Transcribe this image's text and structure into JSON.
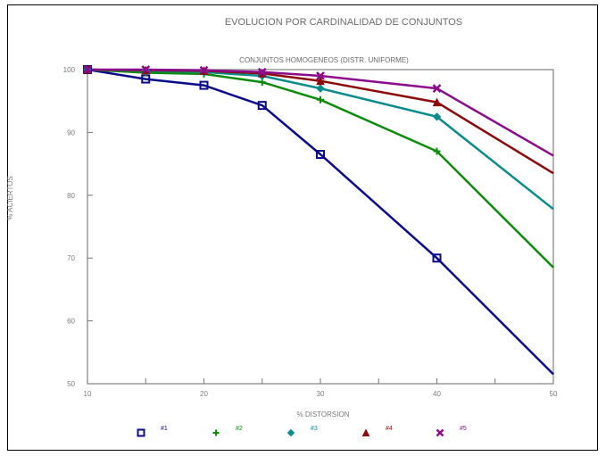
{
  "chart_data": {
    "type": "line",
    "title": "EVOLUCION POR CARDINALIDAD DE CONJUNTOS",
    "subtitle": "CONJUNTOS HOMOGENEOS (DISTR. UNIFORME)",
    "xlabel": "% DISTORSION",
    "ylabel": "% ACIERTOS",
    "xlim": [
      10,
      50
    ],
    "ylim": [
      50,
      100
    ],
    "x_ticks": [
      {
        "value": 10,
        "label": "10"
      },
      {
        "value": 20,
        "label": "20"
      },
      {
        "value": 30,
        "label": "30"
      },
      {
        "value": 40,
        "label": "40"
      },
      {
        "value": 50,
        "label": "50"
      }
    ],
    "y_ticks": [
      {
        "value": 50,
        "label": "50"
      },
      {
        "value": 60,
        "label": "60"
      },
      {
        "value": 70,
        "label": "70"
      },
      {
        "value": 80,
        "label": "80"
      },
      {
        "value": 90,
        "label": "90"
      },
      {
        "value": 100,
        "label": "100"
      }
    ],
    "x": [
      10,
      15,
      20,
      25,
      30,
      40,
      50
    ],
    "series": [
      {
        "name": "#1",
        "color": "#0a0a8c",
        "marker": "square",
        "values": [
          100,
          98.5,
          97.5,
          94.3,
          86.5,
          70.0,
          51.5
        ]
      },
      {
        "name": "#2",
        "color": "#0a8c0a",
        "marker": "plus",
        "values": [
          100,
          99.5,
          99.3,
          98.0,
          95.2,
          87.0,
          68.5
        ]
      },
      {
        "name": "#3",
        "color": "#0a8c8c",
        "marker": "diamond",
        "values": [
          100,
          99.8,
          99.6,
          99.0,
          97.0,
          92.5,
          77.8
        ]
      },
      {
        "name": "#4",
        "color": "#8c0a0a",
        "marker": "triangle",
        "values": [
          100,
          99.9,
          99.8,
          99.4,
          98.2,
          94.8,
          83.5
        ]
      },
      {
        "name": "#5",
        "color": "#8c0a8c",
        "marker": "x",
        "values": [
          100,
          100,
          99.9,
          99.6,
          99.0,
          97.0,
          86.3
        ]
      }
    ],
    "grid": false,
    "legend_position": "bottom"
  }
}
